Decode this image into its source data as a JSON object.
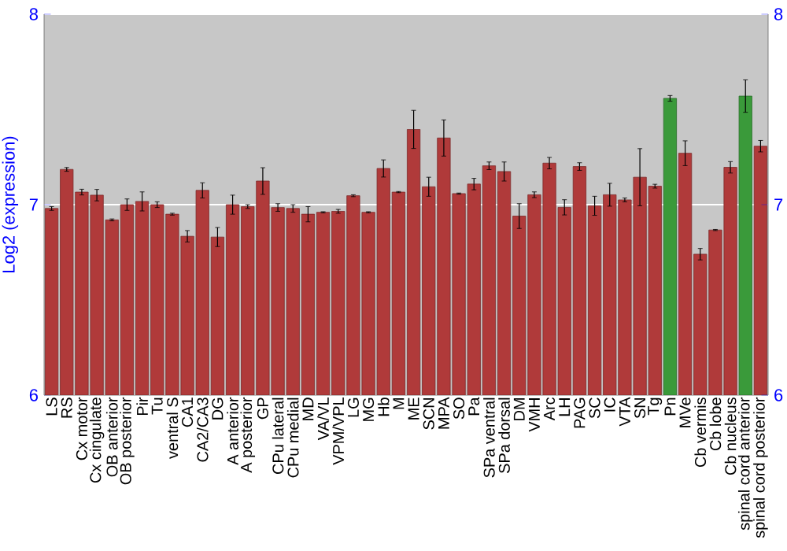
{
  "chart_data": {
    "type": "bar",
    "ylabel": "Log2 (expression)",
    "categories": [
      "LS",
      "RS",
      "Cx motor",
      "Cx cingulate",
      "OB anterior",
      "OB posterior",
      "Pir",
      "Tu",
      "ventral S",
      "CA1",
      "CA2/CA3",
      "DG",
      "A anterior",
      "A posterior",
      "GP",
      "CPu lateral",
      "CPu medial",
      "MD",
      "VA/VL",
      "VPM/VPL",
      "LG",
      "MG",
      "Hb",
      "M",
      "ME",
      "SCN",
      "MPA",
      "SO",
      "Pa",
      "SPa ventral",
      "SPa dorsal",
      "DM",
      "VMH",
      "Arc",
      "LH",
      "PAG",
      "SC",
      "IC",
      "VTA",
      "SN",
      "Tg",
      "Pn",
      "MVe",
      "Cb vermis",
      "Cb lobe",
      "Cb nucleus",
      "spinal cord anterior",
      "spinal cord posterior"
    ],
    "values": [
      6.98,
      7.185,
      7.066,
      7.05,
      6.92,
      7.0,
      7.017,
      7.0,
      6.95,
      6.834,
      7.075,
      6.83,
      7.0,
      6.99,
      7.124,
      6.985,
      6.98,
      6.95,
      6.96,
      6.965,
      7.047,
      6.96,
      7.19,
      7.066,
      7.395,
      7.094,
      7.35,
      7.058,
      7.108,
      7.204,
      7.174,
      6.94,
      7.052,
      7.218,
      6.986,
      7.2,
      6.994,
      7.052,
      7.025,
      7.144,
      7.097,
      7.558,
      7.27,
      6.74,
      6.867,
      7.196,
      7.57,
      7.307
    ],
    "errors": [
      0.01,
      0.01,
      0.015,
      0.03,
      0.005,
      0.03,
      0.05,
      0.015,
      0.005,
      0.03,
      0.04,
      0.05,
      0.05,
      0.01,
      0.07,
      0.02,
      0.02,
      0.04,
      0.003,
      0.01,
      0.005,
      0.003,
      0.045,
      0.003,
      0.1,
      0.05,
      0.095,
      0.003,
      0.03,
      0.02,
      0.05,
      0.065,
      0.015,
      0.03,
      0.04,
      0.02,
      0.05,
      0.06,
      0.01,
      0.15,
      0.01,
      0.015,
      0.065,
      0.03,
      0.003,
      0.03,
      0.085,
      0.03
    ],
    "colors": [
      "#b03a3a",
      "#b03a3a",
      "#b03a3a",
      "#b03a3a",
      "#b03a3a",
      "#b03a3a",
      "#b03a3a",
      "#b03a3a",
      "#b03a3a",
      "#b03a3a",
      "#b03a3a",
      "#b03a3a",
      "#b03a3a",
      "#b03a3a",
      "#b03a3a",
      "#b03a3a",
      "#b03a3a",
      "#b03a3a",
      "#b03a3a",
      "#b03a3a",
      "#b03a3a",
      "#b03a3a",
      "#b03a3a",
      "#b03a3a",
      "#b03a3a",
      "#b03a3a",
      "#b03a3a",
      "#b03a3a",
      "#b03a3a",
      "#b03a3a",
      "#b03a3a",
      "#b03a3a",
      "#b03a3a",
      "#b03a3a",
      "#b03a3a",
      "#b03a3a",
      "#b03a3a",
      "#b03a3a",
      "#b03a3a",
      "#b03a3a",
      "#b03a3a",
      "#3a9a3a",
      "#b03a3a",
      "#b03a3a",
      "#b03a3a",
      "#b03a3a",
      "#3a9a3a",
      "#b03a3a"
    ],
    "ylim": [
      6,
      8
    ],
    "yticks": [
      6,
      7,
      8
    ],
    "y2lim": [
      6,
      8
    ],
    "y2ticks": [
      6,
      7,
      8
    ],
    "grid": "y"
  }
}
